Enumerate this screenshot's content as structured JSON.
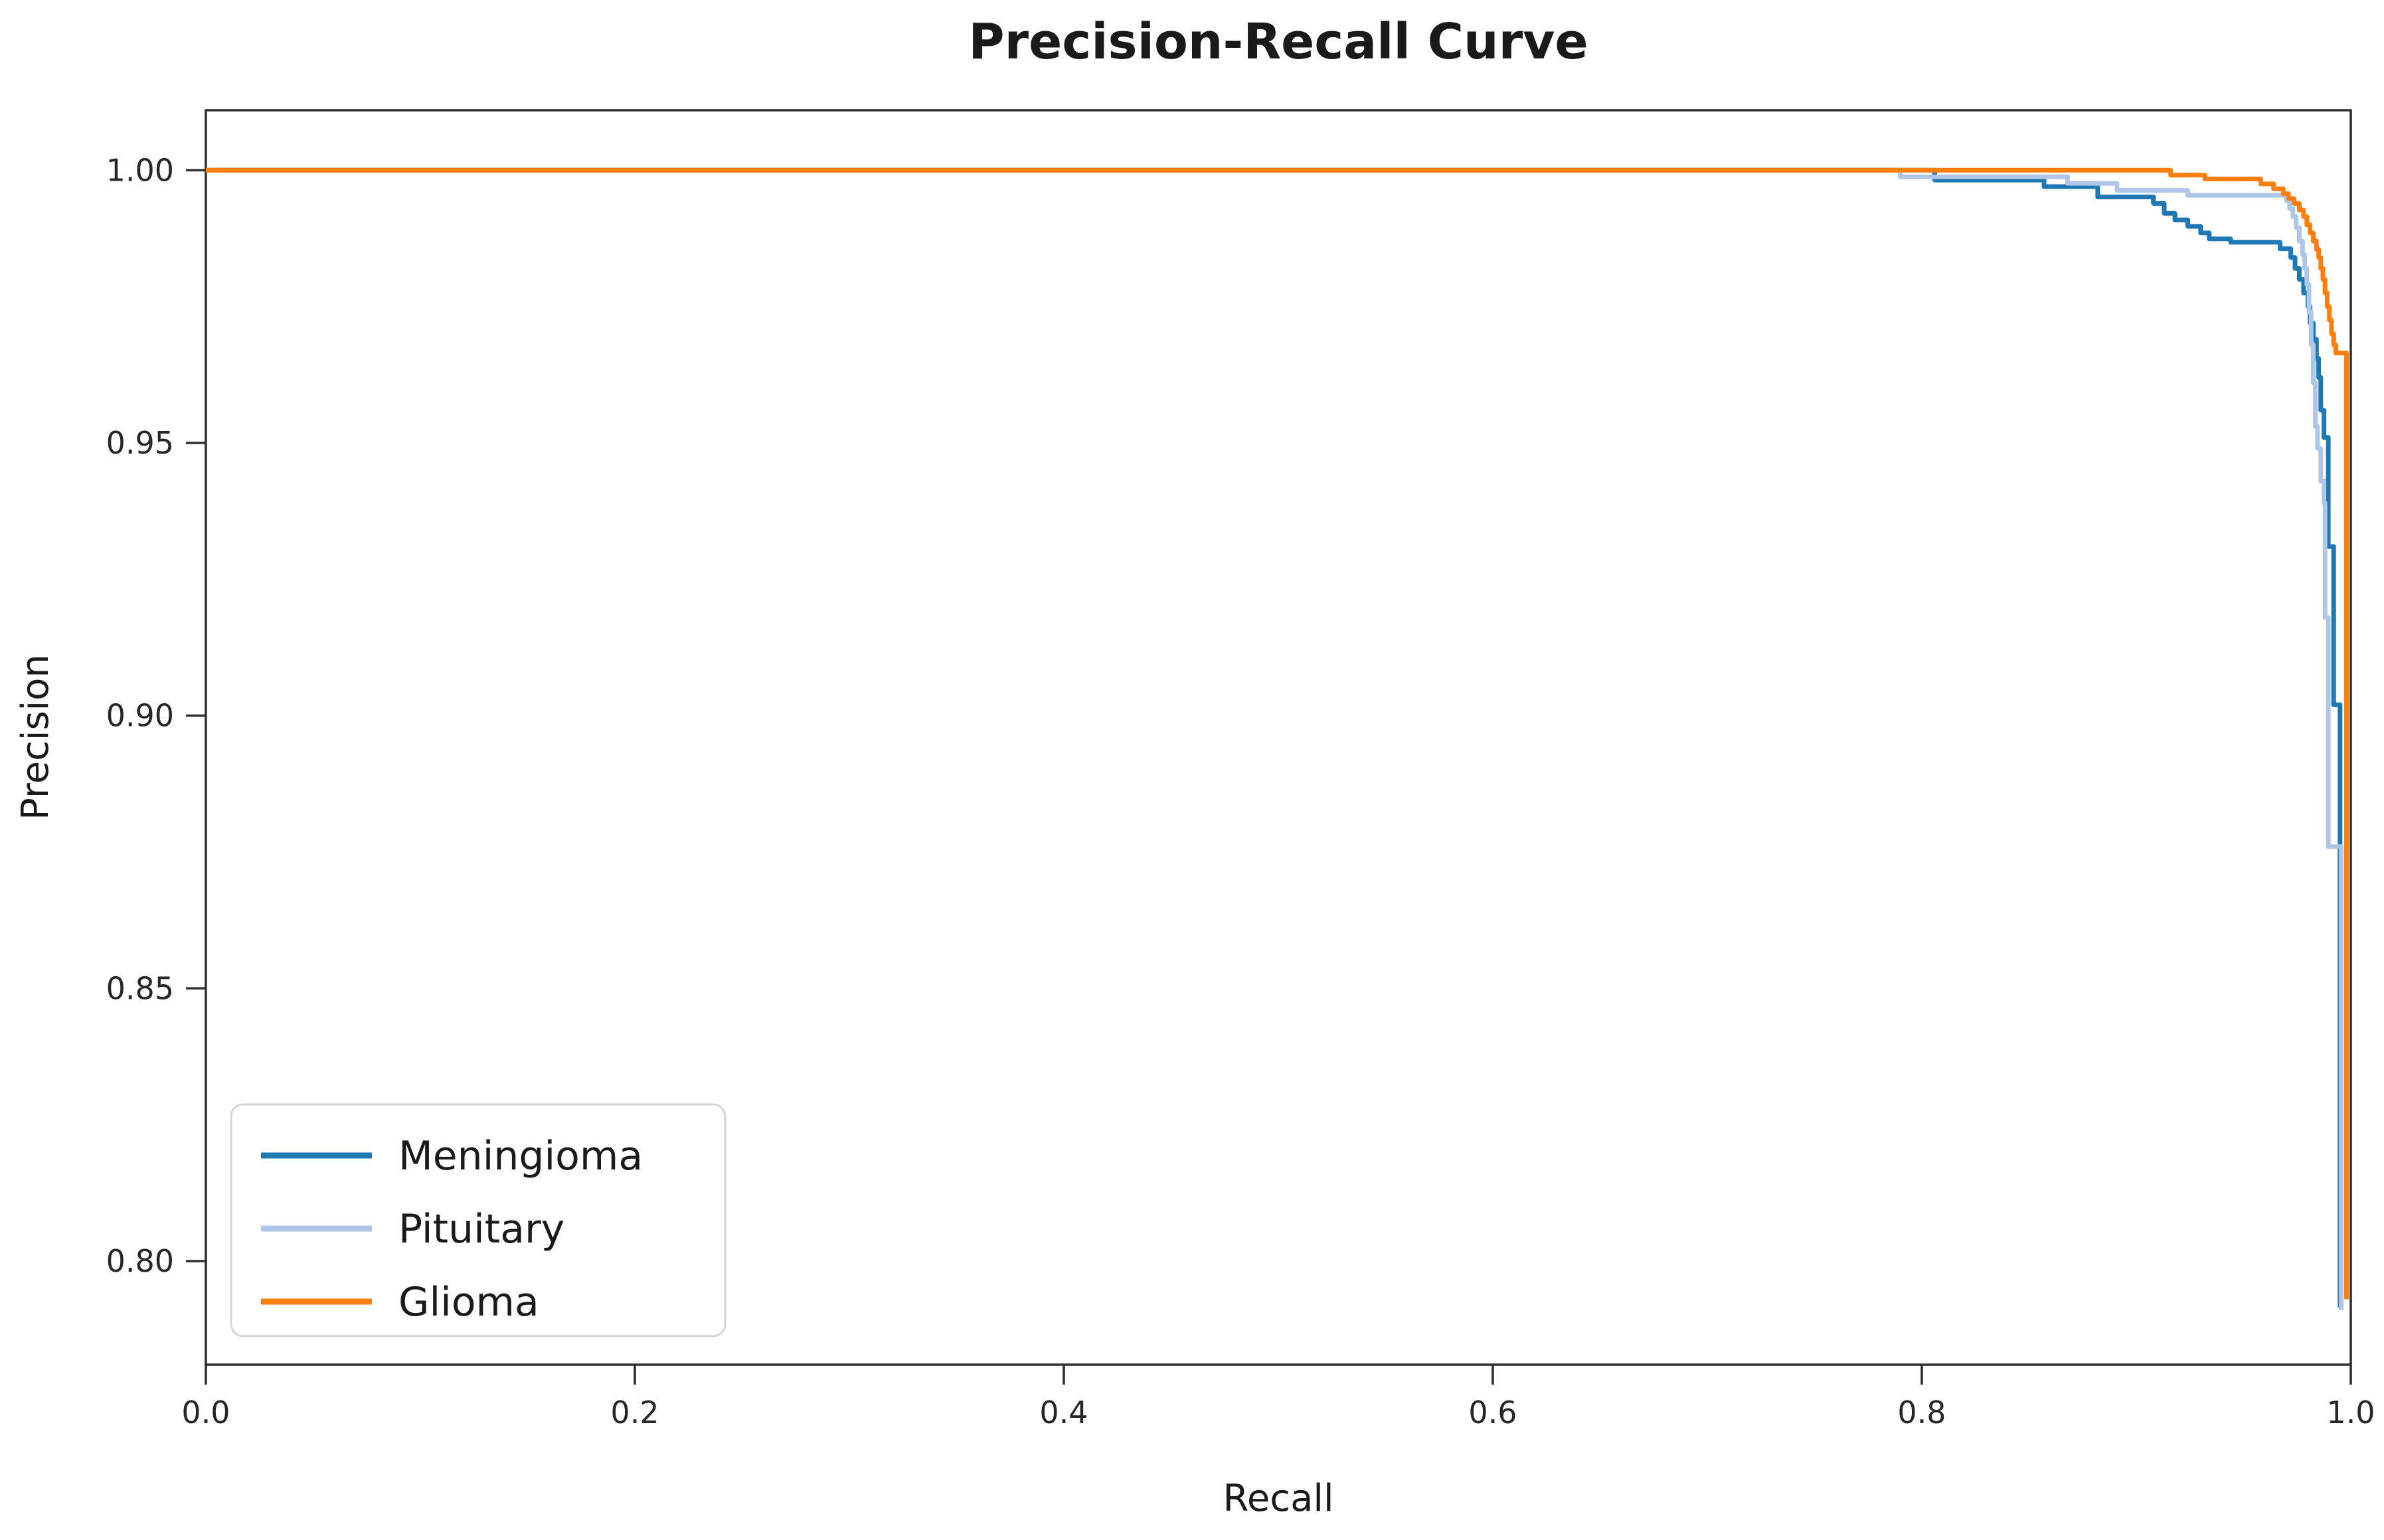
{
  "figure": {
    "title": "Precision-Recall Curve",
    "background_color": "#ffffff",
    "text_color": "#1a1a1a",
    "spine_color": "#2e2e2e"
  },
  "chart_data": {
    "type": "line",
    "subtype": "precision-recall-step-curves",
    "title": "Precision-Recall Curve",
    "xlabel": "Recall",
    "ylabel": "Precision",
    "xlim": [
      0.0,
      1.0
    ],
    "ylim": [
      0.781,
      1.011
    ],
    "grid": false,
    "legend_position": "lower left",
    "xticks": [
      {
        "value": 0.0,
        "label": "0.0"
      },
      {
        "value": 0.2,
        "label": "0.2"
      },
      {
        "value": 0.4,
        "label": "0.4"
      },
      {
        "value": 0.6,
        "label": "0.6"
      },
      {
        "value": 0.8,
        "label": "0.8"
      },
      {
        "value": 1.0,
        "label": "1.0"
      }
    ],
    "yticks": [
      {
        "value": 0.8,
        "label": "0.80"
      },
      {
        "value": 0.85,
        "label": "0.85"
      },
      {
        "value": 0.9,
        "label": "0.90"
      },
      {
        "value": 0.95,
        "label": "0.95"
      },
      {
        "value": 1.0,
        "label": "1.00"
      }
    ],
    "series": [
      {
        "name": "Meningioma",
        "color": "#1f77b4",
        "points": [
          [
            0.0,
            1.0
          ],
          [
            0.806,
            1.0
          ],
          [
            0.806,
            0.9982
          ],
          [
            0.857,
            0.9982
          ],
          [
            0.857,
            0.997
          ],
          [
            0.882,
            0.997
          ],
          [
            0.882,
            0.9951
          ],
          [
            0.908,
            0.9951
          ],
          [
            0.908,
            0.9939
          ],
          [
            0.913,
            0.9939
          ],
          [
            0.913,
            0.9921
          ],
          [
            0.918,
            0.9921
          ],
          [
            0.918,
            0.9909
          ],
          [
            0.924,
            0.9909
          ],
          [
            0.924,
            0.9897
          ],
          [
            0.93,
            0.9897
          ],
          [
            0.93,
            0.9885
          ],
          [
            0.934,
            0.9885
          ],
          [
            0.934,
            0.9874
          ],
          [
            0.944,
            0.9874
          ],
          [
            0.944,
            0.9868
          ],
          [
            0.967,
            0.9868
          ],
          [
            0.967,
            0.9856
          ],
          [
            0.972,
            0.9856
          ],
          [
            0.972,
            0.984
          ],
          [
            0.974,
            0.984
          ],
          [
            0.974,
            0.982
          ],
          [
            0.976,
            0.982
          ],
          [
            0.976,
            0.98
          ],
          [
            0.978,
            0.98
          ],
          [
            0.978,
            0.9775
          ],
          [
            0.98,
            0.9775
          ],
          [
            0.98,
            0.975
          ],
          [
            0.981,
            0.975
          ],
          [
            0.981,
            0.972
          ],
          [
            0.9825,
            0.972
          ],
          [
            0.9825,
            0.969
          ],
          [
            0.984,
            0.969
          ],
          [
            0.984,
            0.9655
          ],
          [
            0.985,
            0.9655
          ],
          [
            0.985,
            0.962
          ],
          [
            0.986,
            0.962
          ],
          [
            0.986,
            0.956
          ],
          [
            0.9875,
            0.956
          ],
          [
            0.9875,
            0.951
          ],
          [
            0.9895,
            0.951
          ],
          [
            0.9895,
            0.931
          ],
          [
            0.992,
            0.931
          ],
          [
            0.992,
            0.902
          ],
          [
            0.995,
            0.902
          ],
          [
            0.995,
            0.7915
          ]
        ]
      },
      {
        "name": "Pituitary",
        "color": "#aec7e8",
        "points": [
          [
            0.0,
            1.0
          ],
          [
            0.79,
            1.0
          ],
          [
            0.79,
            0.9988
          ],
          [
            0.868,
            0.9988
          ],
          [
            0.868,
            0.9976
          ],
          [
            0.891,
            0.9976
          ],
          [
            0.891,
            0.9963
          ],
          [
            0.924,
            0.9963
          ],
          [
            0.924,
            0.9954
          ],
          [
            0.97,
            0.9954
          ],
          [
            0.97,
            0.9944
          ],
          [
            0.9715,
            0.9944
          ],
          [
            0.9715,
            0.993
          ],
          [
            0.973,
            0.993
          ],
          [
            0.973,
            0.9915
          ],
          [
            0.9745,
            0.9915
          ],
          [
            0.9745,
            0.9895
          ],
          [
            0.976,
            0.9895
          ],
          [
            0.976,
            0.987
          ],
          [
            0.9775,
            0.987
          ],
          [
            0.9775,
            0.9845
          ],
          [
            0.9785,
            0.9845
          ],
          [
            0.9785,
            0.982
          ],
          [
            0.9795,
            0.982
          ],
          [
            0.9795,
            0.979
          ],
          [
            0.9805,
            0.979
          ],
          [
            0.9805,
            0.974
          ],
          [
            0.9815,
            0.974
          ],
          [
            0.9815,
            0.968
          ],
          [
            0.9825,
            0.968
          ],
          [
            0.9825,
            0.961
          ],
          [
            0.9835,
            0.961
          ],
          [
            0.9835,
            0.953
          ],
          [
            0.9845,
            0.953
          ],
          [
            0.9845,
            0.949
          ],
          [
            0.986,
            0.949
          ],
          [
            0.986,
            0.943
          ],
          [
            0.9875,
            0.943
          ],
          [
            0.9875,
            0.939
          ],
          [
            0.988,
            0.939
          ],
          [
            0.988,
            0.918
          ],
          [
            0.9895,
            0.918
          ],
          [
            0.9895,
            0.876
          ],
          [
            0.9955,
            0.876
          ],
          [
            0.9955,
            0.791
          ]
        ]
      },
      {
        "name": "Glioma",
        "color": "#ff7f0e",
        "points": [
          [
            0.0,
            1.0
          ],
          [
            0.916,
            1.0
          ],
          [
            0.916,
            0.9991
          ],
          [
            0.932,
            0.9991
          ],
          [
            0.932,
            0.9984
          ],
          [
            0.958,
            0.9984
          ],
          [
            0.958,
            0.9975
          ],
          [
            0.964,
            0.9975
          ],
          [
            0.964,
            0.9966
          ],
          [
            0.9685,
            0.9966
          ],
          [
            0.9685,
            0.9957
          ],
          [
            0.971,
            0.9957
          ],
          [
            0.971,
            0.9948
          ],
          [
            0.9735,
            0.9948
          ],
          [
            0.9735,
            0.9939
          ],
          [
            0.976,
            0.9939
          ],
          [
            0.976,
            0.9927
          ],
          [
            0.978,
            0.9927
          ],
          [
            0.978,
            0.9915
          ],
          [
            0.9795,
            0.9915
          ],
          [
            0.9795,
            0.99
          ],
          [
            0.981,
            0.99
          ],
          [
            0.981,
            0.9885
          ],
          [
            0.9825,
            0.9885
          ],
          [
            0.9825,
            0.987
          ],
          [
            0.984,
            0.987
          ],
          [
            0.984,
            0.9855
          ],
          [
            0.985,
            0.9855
          ],
          [
            0.985,
            0.984
          ],
          [
            0.986,
            0.984
          ],
          [
            0.986,
            0.982
          ],
          [
            0.987,
            0.982
          ],
          [
            0.987,
            0.98
          ],
          [
            0.988,
            0.98
          ],
          [
            0.988,
            0.9775
          ],
          [
            0.989,
            0.9775
          ],
          [
            0.989,
            0.975
          ],
          [
            0.99,
            0.975
          ],
          [
            0.99,
            0.9725
          ],
          [
            0.991,
            0.9725
          ],
          [
            0.991,
            0.97
          ],
          [
            0.992,
            0.97
          ],
          [
            0.992,
            0.968
          ],
          [
            0.993,
            0.968
          ],
          [
            0.993,
            0.9665
          ],
          [
            0.998,
            0.9665
          ],
          [
            0.998,
            0.793
          ]
        ]
      }
    ],
    "legend_entries": [
      "Meningioma",
      "Pituitary",
      "Glioma"
    ]
  }
}
